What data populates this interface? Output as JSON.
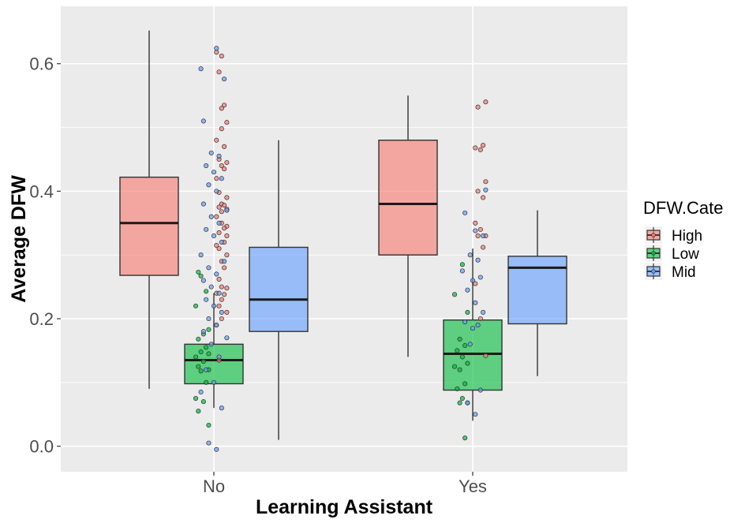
{
  "chart_data": {
    "type": "boxplot",
    "title": "",
    "xlabel": "Learning Assistant",
    "ylabel": "Average DFW",
    "ylim": [
      -0.04,
      0.69
    ],
    "yticks": [
      0.0,
      0.2,
      0.4,
      0.6
    ],
    "ytick_labels": [
      "0.0",
      "0.2",
      "0.4",
      "0.6"
    ],
    "categories": [
      "No",
      "Yes"
    ],
    "grid": true,
    "legend": {
      "title": "DFW.Cate",
      "position": "right",
      "entries": [
        "High",
        "Low",
        "Mid"
      ]
    },
    "colors": {
      "High": "#f8766d",
      "Low": "#00ba38",
      "Mid": "#619cff"
    },
    "boxes": [
      {
        "category": "No",
        "group": "High",
        "min": 0.09,
        "q1": 0.268,
        "median": 0.35,
        "q3": 0.422,
        "max": 0.652
      },
      {
        "category": "No",
        "group": "Low",
        "min": 0.06,
        "q1": 0.098,
        "median": 0.135,
        "q3": 0.16,
        "max": 0.24
      },
      {
        "category": "No",
        "group": "Mid",
        "min": 0.01,
        "q1": 0.18,
        "median": 0.23,
        "q3": 0.312,
        "max": 0.48
      },
      {
        "category": "Yes",
        "group": "High",
        "min": 0.14,
        "q1": 0.3,
        "median": 0.38,
        "q3": 0.48,
        "max": 0.55
      },
      {
        "category": "Yes",
        "group": "Low",
        "min": 0.04,
        "q1": 0.088,
        "median": 0.145,
        "q3": 0.198,
        "max": 0.31
      },
      {
        "category": "Yes",
        "group": "Mid",
        "min": 0.11,
        "q1": 0.192,
        "median": 0.28,
        "q3": 0.298,
        "max": 0.37
      }
    ],
    "points": [
      {
        "category": "No",
        "group": "High",
        "x": [
          -0.24,
          -0.22,
          -0.23,
          -0.21,
          -0.22,
          -0.2,
          -0.22,
          -0.24,
          -0.21,
          -0.23,
          -0.2,
          -0.22,
          -0.21,
          -0.24,
          -0.23,
          -0.2,
          -0.22,
          -0.21,
          -0.23,
          -0.2,
          -0.22,
          -0.24,
          -0.22,
          -0.2,
          -0.21,
          -0.23,
          -0.2,
          -0.21,
          -0.24,
          -0.23,
          -0.2,
          -0.22,
          -0.21,
          -0.23,
          -0.22,
          -0.2,
          -0.24,
          -0.21,
          -0.22,
          -0.23,
          -0.2,
          -0.22,
          -0.24,
          -0.23
        ],
        "y": [
          0.618,
          0.612,
          0.587,
          0.535,
          0.53,
          0.508,
          0.498,
          0.48,
          0.47,
          0.45,
          0.445,
          0.44,
          0.435,
          0.42,
          0.398,
          0.39,
          0.38,
          0.378,
          0.375,
          0.372,
          0.368,
          0.36,
          0.35,
          0.345,
          0.342,
          0.335,
          0.33,
          0.32,
          0.315,
          0.31,
          0.3,
          0.29,
          0.28,
          0.262,
          0.25,
          0.248,
          0.24,
          0.238,
          0.23,
          0.22,
          0.21,
          0.2,
          0.19,
          0.135
        ]
      },
      {
        "category": "No",
        "group": "Low",
        "x": [
          -0.06,
          -0.05,
          -0.03,
          -0.07,
          -0.02,
          -0.04,
          -0.06,
          -0.03,
          -0.05,
          -0.02,
          -0.07,
          -0.04,
          -0.06,
          -0.02,
          -0.05,
          -0.03,
          -0.07,
          -0.04,
          -0.06,
          -0.02
        ],
        "y": [
          0.273,
          0.267,
          0.243,
          0.22,
          0.183,
          0.176,
          0.168,
          0.155,
          0.148,
          0.145,
          0.14,
          0.133,
          0.125,
          0.12,
          0.118,
          0.1,
          0.075,
          0.07,
          0.055,
          0.033
        ]
      },
      {
        "category": "No",
        "group": "Mid",
        "x": [
          0.26,
          0.2,
          0.29,
          0.21,
          0.24,
          0.27,
          0.22,
          0.25,
          0.28,
          0.23,
          0.26,
          0.21,
          0.3,
          0.24,
          0.27,
          0.22,
          0.25,
          0.28,
          0.2,
          0.29,
          0.23,
          0.26,
          0.21,
          0.24,
          0.27,
          0.22,
          0.25,
          0.28,
          0.23,
          0.26,
          0.21,
          0.3,
          0.24,
          0.27,
          0.22,
          0.25,
          0.2,
          0.28,
          0.23,
          0.26
        ],
        "y": [
          0.624,
          0.592,
          0.576,
          0.51,
          0.46,
          0.455,
          0.44,
          0.43,
          0.42,
          0.41,
          0.4,
          0.38,
          0.37,
          0.36,
          0.35,
          0.34,
          0.33,
          0.32,
          0.3,
          0.29,
          0.28,
          0.27,
          0.26,
          0.25,
          0.24,
          0.23,
          0.22,
          0.21,
          0.2,
          0.19,
          0.18,
          0.17,
          0.16,
          0.14,
          0.12,
          0.1,
          0.085,
          0.06,
          0.005,
          -0.005
        ]
      },
      {
        "category": "Yes",
        "group": "High",
        "x": [
          -0.2,
          -0.23,
          -0.21,
          -0.24,
          -0.22,
          -0.2,
          -0.23,
          -0.21,
          -0.24,
          -0.22,
          -0.2,
          -0.23,
          -0.21,
          -0.24,
          -0.22,
          -0.2
        ],
        "y": [
          0.54,
          0.532,
          0.472,
          0.468,
          0.465,
          0.415,
          0.4,
          0.39,
          0.35,
          0.34,
          0.33,
          0.33,
          0.312,
          0.255,
          0.2,
          0.142
        ]
      },
      {
        "category": "Yes",
        "group": "Low",
        "x": [
          -0.04,
          -0.07,
          -0.02,
          -0.05,
          -0.03,
          -0.06,
          -0.04,
          -0.02,
          -0.07,
          -0.05,
          -0.03,
          -0.06,
          -0.04,
          -0.02,
          -0.05,
          -0.03
        ],
        "y": [
          0.285,
          0.238,
          0.21,
          0.168,
          0.158,
          0.15,
          0.14,
          0.13,
          0.125,
          0.12,
          0.098,
          0.09,
          0.075,
          0.068,
          0.068,
          0.013
        ]
      },
      {
        "category": "Yes",
        "group": "Mid",
        "x": [
          0.3,
          0.22,
          0.26,
          0.29,
          0.24,
          0.27,
          0.21,
          0.28,
          0.25,
          0.23,
          0.26,
          0.29,
          0.22,
          0.27,
          0.25,
          0.24,
          0.28,
          0.23,
          0.26
        ],
        "y": [
          0.402,
          0.366,
          0.338,
          0.33,
          0.3,
          0.292,
          0.275,
          0.265,
          0.26,
          0.245,
          0.225,
          0.21,
          0.195,
          0.19,
          0.185,
          0.16,
          0.088,
          0.068,
          0.05
        ]
      }
    ]
  }
}
